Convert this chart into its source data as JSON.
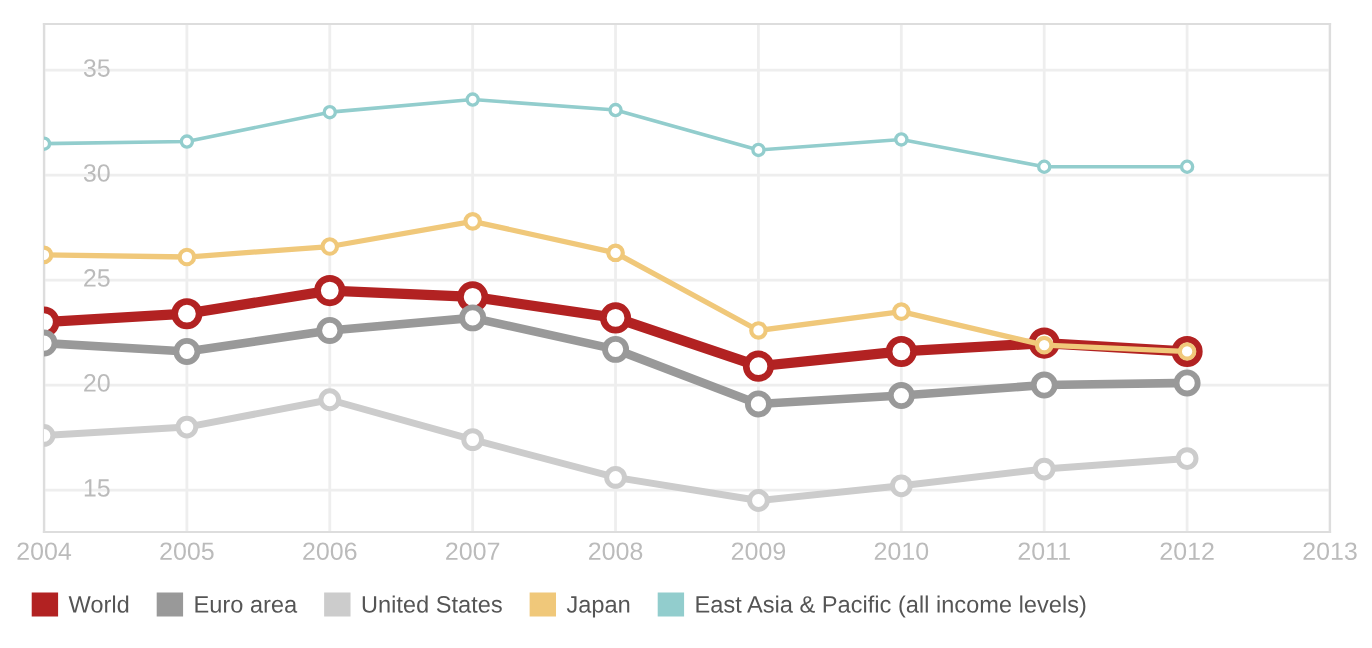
{
  "chart_data": {
    "type": "line",
    "x": [
      2004,
      2005,
      2006,
      2007,
      2008,
      2009,
      2010,
      2011,
      2012
    ],
    "series": [
      {
        "name": "World",
        "color": "#b22222",
        "values": [
          23.0,
          23.4,
          24.5,
          24.2,
          23.2,
          20.9,
          21.6,
          22.0,
          21.6
        ]
      },
      {
        "name": "Euro area",
        "color": "#999999",
        "values": [
          22.0,
          21.6,
          22.6,
          23.2,
          21.7,
          19.1,
          19.5,
          20.0,
          20.1
        ]
      },
      {
        "name": "United States",
        "color": "#cccccc",
        "values": [
          17.6,
          18.0,
          19.3,
          17.4,
          15.6,
          14.5,
          15.2,
          16.0,
          16.5
        ]
      },
      {
        "name": "Japan",
        "color": "#f0c87a",
        "values": [
          26.2,
          26.1,
          26.6,
          27.8,
          26.3,
          22.6,
          23.5,
          21.9,
          21.6
        ]
      },
      {
        "name": "East Asia & Pacific (all income levels)",
        "color": "#92cdcd",
        "values": [
          31.5,
          31.6,
          33.0,
          33.6,
          33.1,
          31.2,
          31.7,
          30.4,
          30.4
        ]
      }
    ],
    "xlim": [
      2004,
      2013
    ],
    "xticks": [
      2004,
      2005,
      2006,
      2007,
      2008,
      2009,
      2010,
      2011,
      2012,
      2013
    ],
    "ylim": [
      13,
      37.2
    ],
    "yticks": [
      15,
      20,
      25,
      30,
      35
    ],
    "grid": true,
    "legend": "bottom left",
    "marker": "circle",
    "line_style": "solid"
  }
}
